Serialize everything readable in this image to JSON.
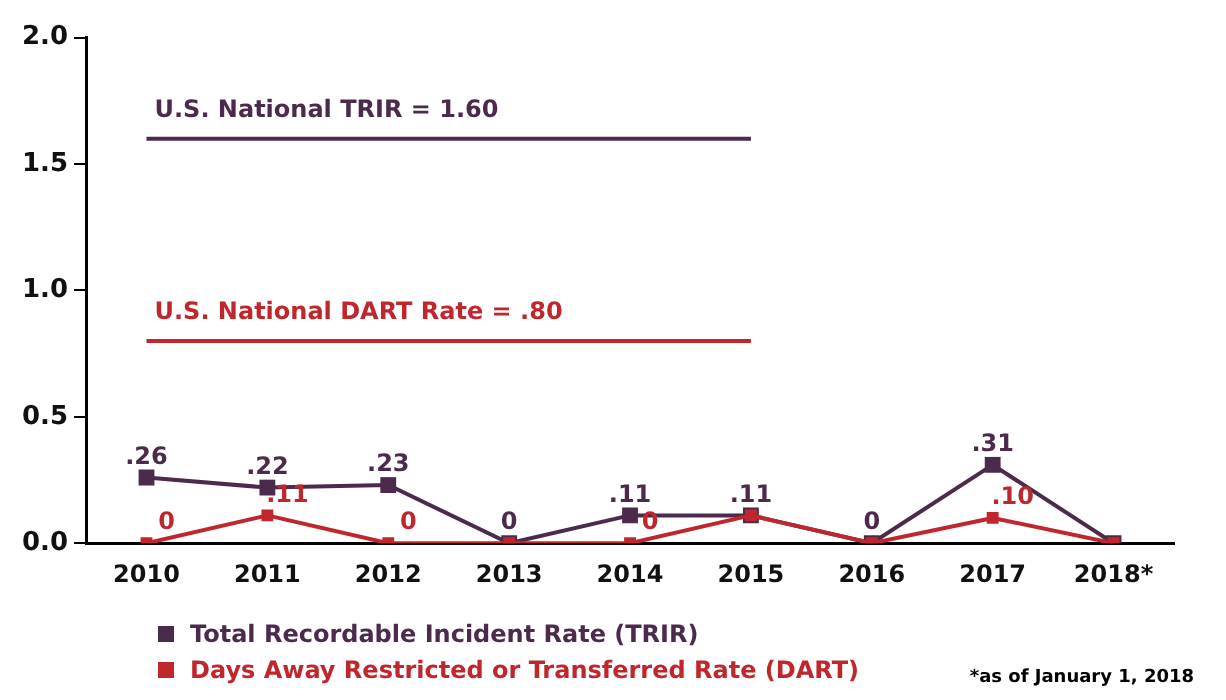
{
  "chart_data": {
    "type": "line",
    "categories": [
      "2010",
      "2011",
      "2012",
      "2013",
      "2014",
      "2015",
      "2016",
      "2017",
      "2018*"
    ],
    "series": [
      {
        "name": "Total Recordable Incident Rate (TRIR)",
        "color": "#4b2a4b",
        "values": [
          0.26,
          0.22,
          0.23,
          0,
          0.11,
          0.11,
          0,
          0.31,
          0
        ],
        "value_labels": [
          ".26",
          ".22",
          ".23",
          "0",
          ".11",
          ".11",
          "0",
          ".31",
          null
        ]
      },
      {
        "name": "Days Away Restricted or Transferred Rate (DART)",
        "color": "#c0272d",
        "values": [
          0,
          0.11,
          0,
          0,
          0,
          0.11,
          0,
          0.1,
          0
        ],
        "value_labels": [
          "0",
          ".11",
          "0",
          null,
          "0",
          null,
          null,
          ".10",
          null
        ]
      }
    ],
    "ylim": [
      0,
      2
    ],
    "yticks": [
      {
        "value": 0,
        "label": "0.0"
      },
      {
        "value": 0.5,
        "label": "0.5"
      },
      {
        "value": 1,
        "label": "1.0"
      },
      {
        "value": 1.5,
        "label": "1.5"
      },
      {
        "value": 2,
        "label": "2.0"
      }
    ],
    "ref_lines": [
      {
        "axis": "y",
        "value": 1.6,
        "label": "U.S. National TRIR = 1.60",
        "color": "#4b2a4b"
      },
      {
        "axis": "y",
        "value": 0.8,
        "label": "U.S. National DART Rate = .80",
        "color": "#c0272d"
      }
    ],
    "marker": "square",
    "grid": false,
    "legend": "bottom",
    "annotations": [
      "*as of January 1, 2018"
    ]
  }
}
